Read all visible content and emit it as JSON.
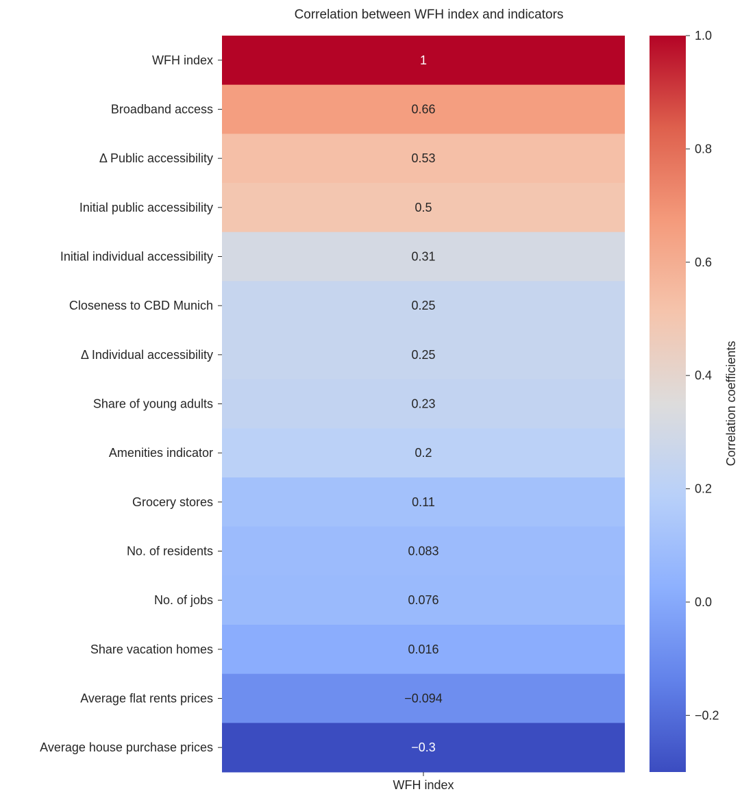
{
  "chart_data": {
    "type": "heatmap",
    "title": "Correlation between WFH index and indicators",
    "columns": [
      "WFH index"
    ],
    "rows": [
      "WFH index",
      "Broadband access",
      "Δ Public accessibility",
      "Initial public accessibility",
      "Initial individual accessibility",
      "Closeness to CBD Munich",
      "Δ Individual accessibility",
      "Share of young adults",
      "Amenities indicator",
      "Grocery stores",
      "No. of residents",
      "No. of jobs",
      "Share vacation homes",
      "Average flat rents prices",
      "Average house purchase prices"
    ],
    "values": [
      1,
      0.66,
      0.53,
      0.5,
      0.31,
      0.25,
      0.25,
      0.23,
      0.2,
      0.11,
      0.083,
      0.076,
      0.016,
      -0.094,
      -0.3
    ],
    "value_labels": [
      "1",
      "0.66",
      "0.53",
      "0.5",
      "0.31",
      "0.25",
      "0.25",
      "0.23",
      "0.2",
      "0.11",
      "0.083",
      "0.076",
      "0.016",
      "−0.094",
      "−0.3"
    ],
    "colorbar": {
      "label": "Correlation coefficients",
      "range": [
        -0.3,
        1.0
      ],
      "ticks": [
        1.0,
        0.8,
        0.6,
        0.4,
        0.2,
        0.0,
        -0.2
      ],
      "tick_labels": [
        "1.0",
        "0.8",
        "0.6",
        "0.4",
        "0.2",
        "0.0",
        "−0.2"
      ],
      "colormap": "coolwarm",
      "stops": [
        "#3b4cc0",
        "#6282ea",
        "#8db0fe",
        "#b8d0f9",
        "#dddcdc",
        "#f5c4ac",
        "#f49a7b",
        "#de604d",
        "#b40426"
      ]
    },
    "annotation_colors": {
      "dark": "#262626",
      "light": "#ffffff"
    }
  }
}
